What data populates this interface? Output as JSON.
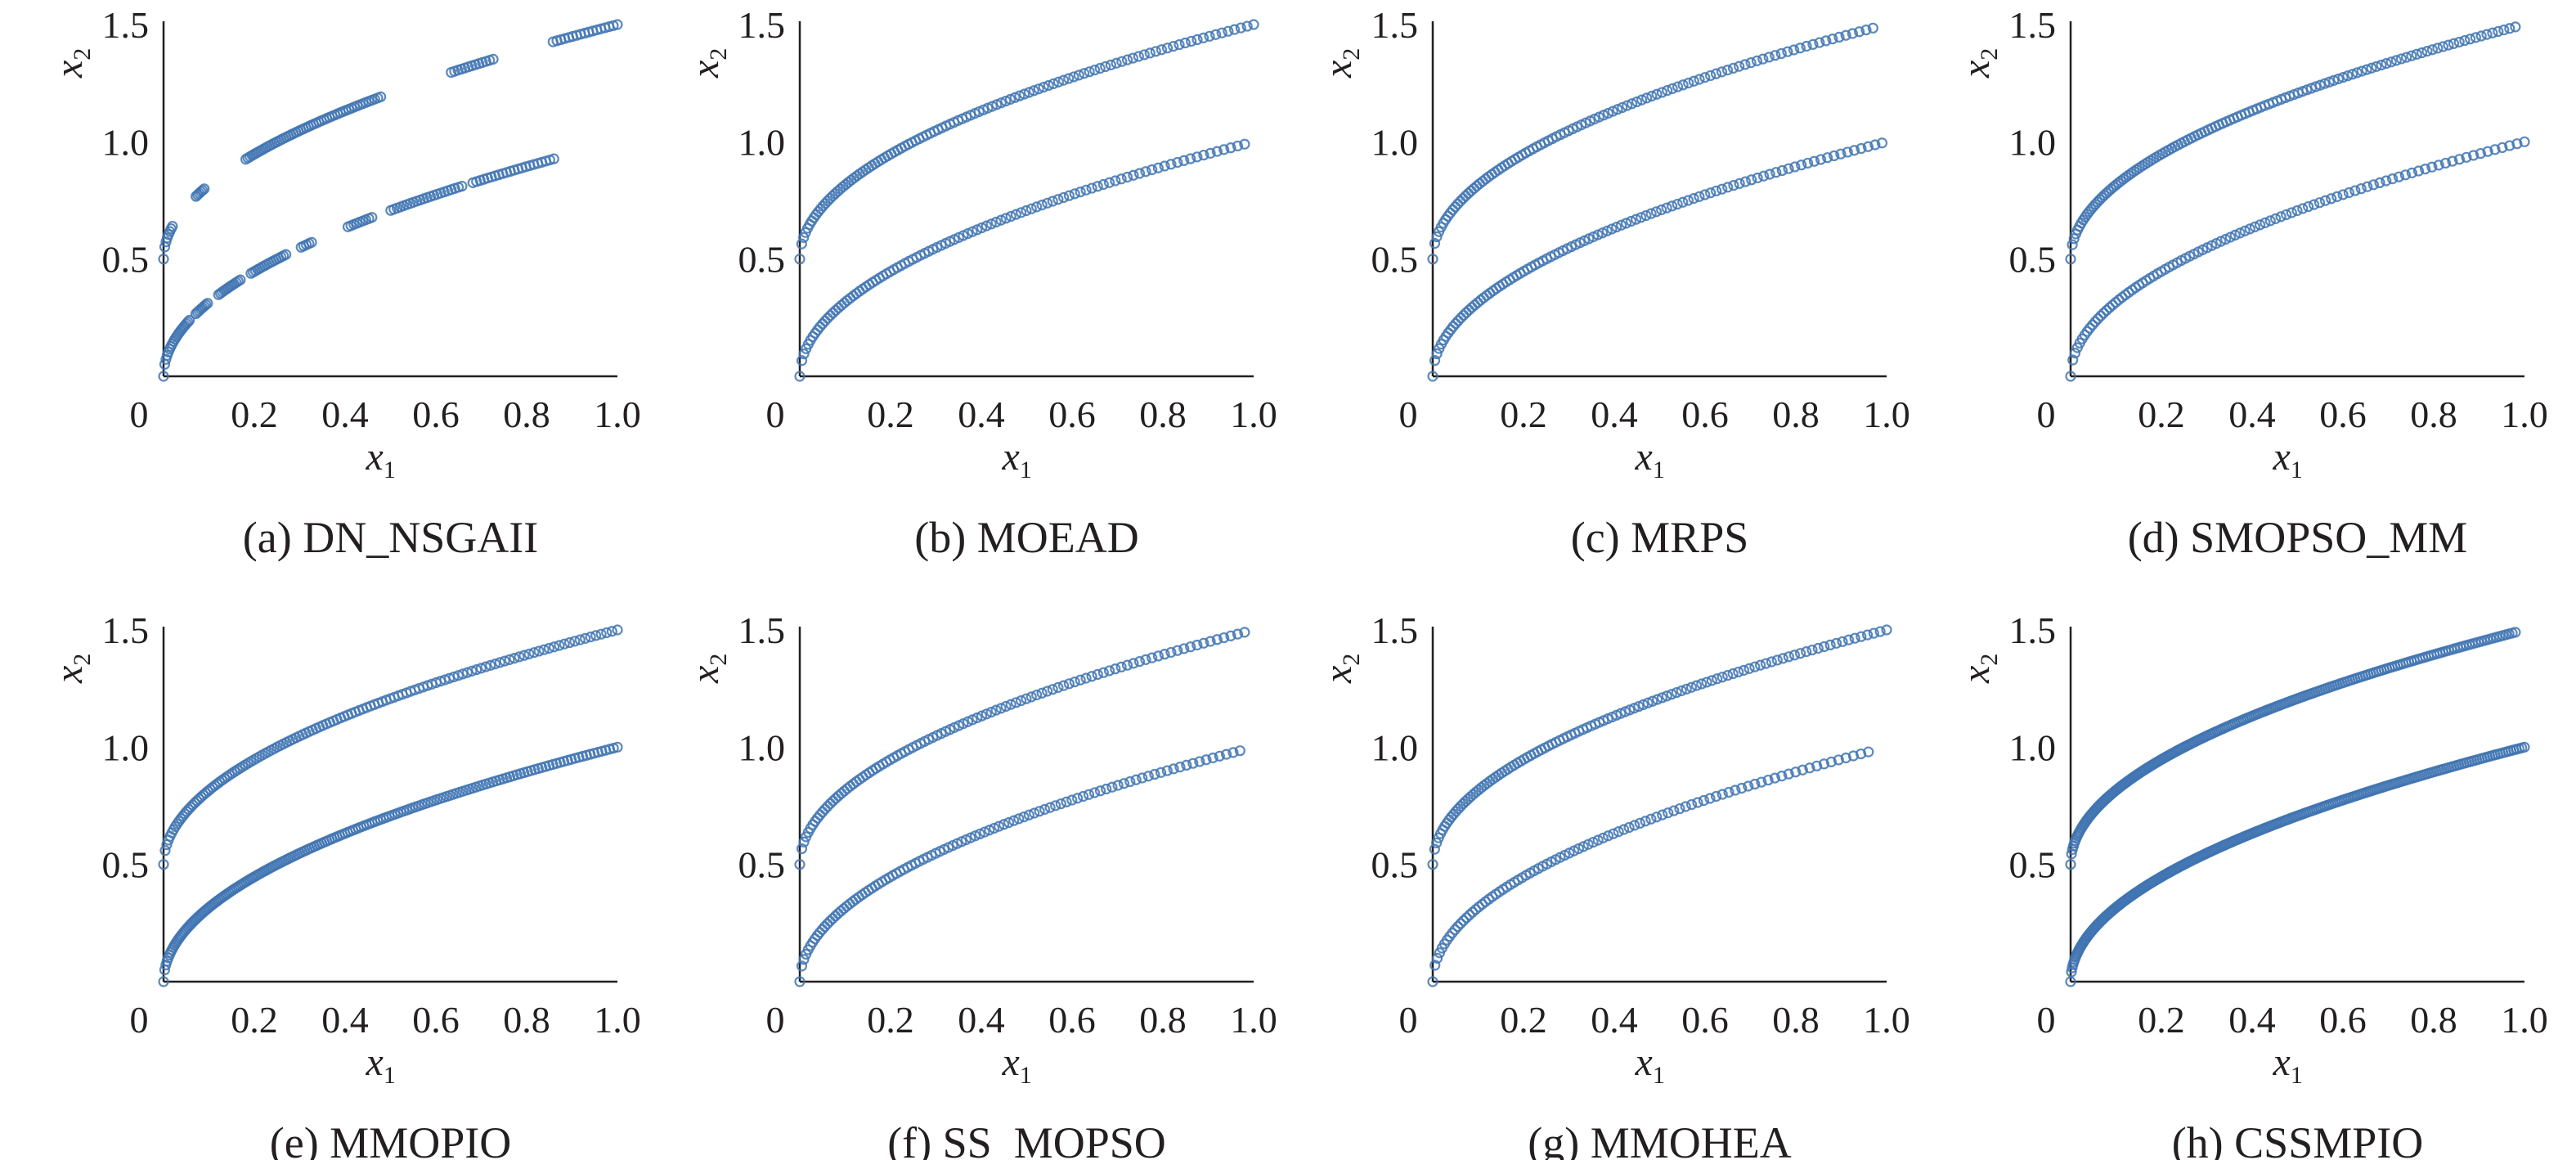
{
  "figure": {
    "background": "#ffffff",
    "marker_color": "#3f74b2",
    "text_color": "#231f20"
  },
  "chart_data": [
    {
      "type": "scatter",
      "id": "a",
      "caption": "(a) DN_NSGAII",
      "xlabel": "x",
      "xlabel_sub": "1",
      "ylabel": "x",
      "ylabel_sub": "2",
      "xlim": [
        0,
        1.0
      ],
      "ylim": [
        0,
        1.5
      ],
      "xticks": [
        "0",
        "0.2",
        "0.4",
        "0.6",
        "0.8",
        "1.0"
      ],
      "xtick_values": [
        0,
        0.2,
        0.4,
        0.6,
        0.8,
        1.0
      ],
      "yticks": [
        "0.5",
        "1.0",
        "1.5"
      ],
      "ytick_values": [
        0.5,
        1.0,
        1.5
      ],
      "series": [
        {
          "name": "upper",
          "x_range": [
            0.0,
            1.0
          ],
          "offset": 0.5,
          "count": 170,
          "segments": [
            [
              0.0,
              0.02
            ],
            [
              0.07,
              0.09
            ],
            [
              0.18,
              0.48
            ],
            [
              0.63,
              0.73
            ],
            [
              0.85,
              1.0
            ]
          ]
        },
        {
          "name": "lower",
          "x_range": [
            0.0,
            0.86
          ],
          "offset": 0.0,
          "count": 150,
          "segments": [
            [
              0.0,
              0.06
            ],
            [
              0.07,
              0.1
            ],
            [
              0.12,
              0.17
            ],
            [
              0.19,
              0.27
            ],
            [
              0.3,
              0.33
            ],
            [
              0.4,
              0.46
            ],
            [
              0.5,
              0.66
            ],
            [
              0.68,
              0.86
            ]
          ]
        }
      ]
    },
    {
      "type": "scatter",
      "id": "b",
      "caption": "(b) MOEAD",
      "xlabel": "x",
      "xlabel_sub": "1",
      "ylabel": "x",
      "ylabel_sub": "2",
      "xlim": [
        0,
        1.0
      ],
      "ylim": [
        0,
        1.5
      ],
      "xticks": [
        "0",
        "0.2",
        "0.4",
        "0.6",
        "0.8",
        "1.0"
      ],
      "xtick_values": [
        0,
        0.2,
        0.4,
        0.6,
        0.8,
        1.0
      ],
      "yticks": [
        "0.5",
        "1.0",
        "1.5"
      ],
      "ytick_values": [
        0.5,
        1.0,
        1.5
      ],
      "series": [
        {
          "name": "upper",
          "x_range": [
            0.0,
            1.0
          ],
          "offset": 0.5,
          "count": 110
        },
        {
          "name": "lower",
          "x_range": [
            0.0,
            0.98
          ],
          "offset": 0.0,
          "count": 100
        }
      ]
    },
    {
      "type": "scatter",
      "id": "c",
      "caption": "(c) MRPS",
      "xlabel": "x",
      "xlabel_sub": "1",
      "ylabel": "x",
      "ylabel_sub": "2",
      "xlim": [
        0,
        1.0
      ],
      "ylim": [
        0,
        1.5
      ],
      "xticks": [
        "0",
        "0.2",
        "0.4",
        "0.6",
        "0.8",
        "1.0"
      ],
      "xtick_values": [
        0,
        0.2,
        0.4,
        0.6,
        0.8,
        1.0
      ],
      "yticks": [
        "0.5",
        "1.0",
        "1.5"
      ],
      "ytick_values": [
        0.5,
        1.0,
        1.5
      ],
      "series": [
        {
          "name": "upper",
          "x_range": [
            0.0,
            0.97
          ],
          "offset": 0.5,
          "count": 100
        },
        {
          "name": "lower",
          "x_range": [
            0.0,
            0.99
          ],
          "offset": 0.0,
          "count": 100
        }
      ]
    },
    {
      "type": "scatter",
      "id": "d",
      "caption": "(d) SMOPSO_MM",
      "xlabel": "x",
      "xlabel_sub": "1",
      "ylabel": "x",
      "ylabel_sub": "2",
      "xlim": [
        0,
        1.0
      ],
      "ylim": [
        0,
        1.5
      ],
      "xticks": [
        "0",
        "0.2",
        "0.4",
        "0.6",
        "0.8",
        "1.0"
      ],
      "xtick_values": [
        0,
        0.2,
        0.4,
        0.6,
        0.8,
        1.0
      ],
      "yticks": [
        "0.5",
        "1.0",
        "1.5"
      ],
      "ytick_values": [
        0.5,
        1.0,
        1.5
      ],
      "series": [
        {
          "name": "upper",
          "x_range": [
            0.0,
            0.98
          ],
          "offset": 0.5,
          "count": 120
        },
        {
          "name": "lower",
          "x_range": [
            0.0,
            1.0
          ],
          "offset": 0.0,
          "count": 95
        }
      ]
    },
    {
      "type": "scatter",
      "id": "e",
      "caption": "(e) MMOPIO",
      "xlabel": "x",
      "xlabel_sub": "1",
      "ylabel": "x",
      "ylabel_sub": "2",
      "xlim": [
        0,
        1.0
      ],
      "ylim": [
        0,
        1.5
      ],
      "xticks": [
        "0",
        "0.2",
        "0.4",
        "0.6",
        "0.8",
        "1.0"
      ],
      "xtick_values": [
        0,
        0.2,
        0.4,
        0.6,
        0.8,
        1.0
      ],
      "yticks": [
        "0.5",
        "1.0",
        "1.5"
      ],
      "ytick_values": [
        0.5,
        1.0,
        1.5
      ],
      "series": [
        {
          "name": "upper",
          "x_range": [
            0.0,
            1.0
          ],
          "offset": 0.5,
          "count": 130
        },
        {
          "name": "lower",
          "x_range": [
            0.0,
            1.0
          ],
          "offset": 0.0,
          "count": 180
        }
      ]
    },
    {
      "type": "scatter",
      "id": "f",
      "caption": "(f) SS_MOPSO",
      "xlabel": "x",
      "xlabel_sub": "1",
      "ylabel": "x",
      "ylabel_sub": "2",
      "xlim": [
        0,
        1.0
      ],
      "ylim": [
        0,
        1.5
      ],
      "xticks": [
        "0",
        "0.2",
        "0.4",
        "0.6",
        "0.8",
        "1.0"
      ],
      "xtick_values": [
        0,
        0.2,
        0.4,
        0.6,
        0.8,
        1.0
      ],
      "yticks": [
        "0.5",
        "1.0",
        "1.5"
      ],
      "ytick_values": [
        0.5,
        1.0,
        1.5
      ],
      "series": [
        {
          "name": "upper",
          "x_range": [
            0.0,
            0.98
          ],
          "offset": 0.5,
          "count": 100
        },
        {
          "name": "lower",
          "x_range": [
            0.0,
            0.97
          ],
          "offset": 0.0,
          "count": 100
        }
      ]
    },
    {
      "type": "scatter",
      "id": "g",
      "caption": "(g) MMOHEA",
      "xlabel": "x",
      "xlabel_sub": "1",
      "ylabel": "x",
      "ylabel_sub": "2",
      "xlim": [
        0,
        1.0
      ],
      "ylim": [
        0,
        1.5
      ],
      "xticks": [
        "0",
        "0.2",
        "0.4",
        "0.6",
        "0.8",
        "1.0"
      ],
      "xtick_values": [
        0,
        0.2,
        0.4,
        0.6,
        0.8,
        1.0
      ],
      "yticks": [
        "0.5",
        "1.0",
        "1.5"
      ],
      "ytick_values": [
        0.5,
        1.0,
        1.5
      ],
      "series": [
        {
          "name": "upper",
          "x_range": [
            0.0,
            1.0
          ],
          "offset": 0.5,
          "count": 110
        },
        {
          "name": "lower",
          "x_range": [
            0.0,
            0.96
          ],
          "offset": 0.0,
          "count": 90
        }
      ]
    },
    {
      "type": "scatter",
      "id": "h",
      "caption": "(h) CSSMPIO",
      "xlabel": "x",
      "xlabel_sub": "1",
      "ylabel": "x",
      "ylabel_sub": "2",
      "xlim": [
        0,
        1.0
      ],
      "ylim": [
        0,
        1.5
      ],
      "xticks": [
        "0",
        "0.2",
        "0.4",
        "0.6",
        "0.8",
        "1.0"
      ],
      "xtick_values": [
        0,
        0.2,
        0.4,
        0.6,
        0.8,
        1.0
      ],
      "yticks": [
        "0.5",
        "1.0",
        "1.5"
      ],
      "ytick_values": [
        0.5,
        1.0,
        1.5
      ],
      "series": [
        {
          "name": "upper",
          "x_range": [
            0.0,
            0.98
          ],
          "offset": 0.5,
          "count": 220
        },
        {
          "name": "lower",
          "x_range": [
            0.0,
            1.0
          ],
          "offset": 0.0,
          "count": 260
        }
      ]
    }
  ]
}
